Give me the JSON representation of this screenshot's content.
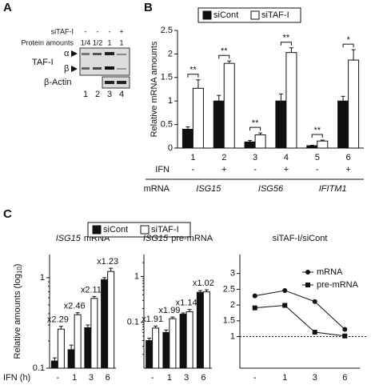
{
  "panels": [
    "A",
    "B",
    "C"
  ],
  "blot": {
    "sitaf_label": "siTAF-I",
    "sitaf": [
      "-",
      "-",
      "-",
      "+"
    ],
    "protein_label": "Protein amounts",
    "protein": [
      "1/4",
      "1/2",
      "1",
      "1"
    ],
    "taf": "TAF-I",
    "alpha": "α",
    "beta": "β",
    "actin": "β-Actin",
    "lanes": [
      "1",
      "2",
      "3",
      "4"
    ]
  },
  "chart_data": [
    {
      "type": "bar",
      "ylabel": "Relative mRNA amounts",
      "categories": [
        "1",
        "2",
        "3",
        "4",
        "5",
        "6"
      ],
      "ylim": [
        0,
        2.5
      ],
      "yticks": [
        0,
        0.5,
        1,
        1.5,
        2,
        2.5
      ],
      "series": [
        {
          "name": "siCont",
          "color": "#111111",
          "values": [
            0.4,
            1.0,
            0.13,
            1.0,
            0.05,
            1.0
          ],
          "errors": [
            0.05,
            0.12,
            0.03,
            0.15,
            0.01,
            0.1
          ]
        },
        {
          "name": "siTAF-I",
          "color": "#ffffff",
          "values": [
            1.27,
            1.8,
            0.28,
            2.03,
            0.15,
            1.87
          ],
          "errors": [
            0.18,
            0.05,
            0.04,
            0.1,
            0.02,
            0.22
          ]
        }
      ],
      "significance": [
        "**",
        "**",
        "**",
        "**",
        "**",
        "*"
      ],
      "ifn_label": "IFN",
      "ifn": [
        "-",
        "+",
        "-",
        "+",
        "-",
        "+"
      ],
      "mrna_label": "mRNA",
      "mrna": [
        "ISG15",
        "ISG56",
        "IFITM1"
      ]
    },
    {
      "type": "bar",
      "log_scale": true,
      "gene": "ISG15",
      "title": "mRNA",
      "ylabel": "Relative amounts (log",
      "ylabel_sub": "10",
      "ylabel_end": ")",
      "xlabel": "IFN (h)",
      "categories": [
        "-",
        "1",
        "3",
        "6"
      ],
      "ylim": [
        0.1,
        1.8
      ],
      "yticks": [
        0.1,
        1
      ],
      "series": [
        {
          "name": "siCont",
          "color": "#111111",
          "values": [
            0.12,
            0.16,
            0.28,
            0.95
          ],
          "errors": [
            0.01,
            0.02,
            0.02,
            0.05
          ]
        },
        {
          "name": "siTAF-I",
          "color": "#ffffff",
          "values": [
            0.27,
            0.39,
            0.59,
            1.17
          ],
          "errors": [
            0.02,
            0.02,
            0.03,
            0.1
          ]
        }
      ],
      "ratio_labels": [
        "x2.29",
        "x2.46",
        "x2.11",
        "x1.23"
      ]
    },
    {
      "type": "bar",
      "log_scale": true,
      "gene": "ISG15",
      "title": "pre-mRNA",
      "categories": [
        "-",
        "1",
        "3",
        "6"
      ],
      "ylim": [
        0.01,
        3
      ],
      "yticks": [
        0.1,
        1
      ],
      "series": [
        {
          "color": "#111111",
          "values": [
            0.04,
            0.06,
            0.15,
            0.45
          ],
          "errors": [
            0.005,
            0.008,
            0.01,
            0.04
          ]
        },
        {
          "color": "#ffffff",
          "values": [
            0.075,
            0.12,
            0.17,
            0.46
          ],
          "errors": [
            0.008,
            0.01,
            0.02,
            0.05
          ]
        }
      ],
      "ratio_labels": [
        "x1.91",
        "x1.99",
        "x1.14",
        "x1.02"
      ]
    },
    {
      "type": "line",
      "title": "siTAF-I/siCont",
      "categories": [
        "-",
        "1",
        "3",
        "6"
      ],
      "ylim": [
        0,
        3.6
      ],
      "yticks": [
        1,
        1.5,
        2,
        2.5,
        3
      ],
      "reference_line": 1,
      "series": [
        {
          "name": "mRNA",
          "color": "#111111",
          "marker": "circle",
          "values": [
            2.29,
            2.46,
            2.11,
            1.23
          ]
        },
        {
          "name": "pre-mRNA",
          "color": "#111111",
          "marker": "square",
          "values": [
            1.91,
            1.99,
            1.14,
            1.02
          ]
        }
      ]
    }
  ]
}
